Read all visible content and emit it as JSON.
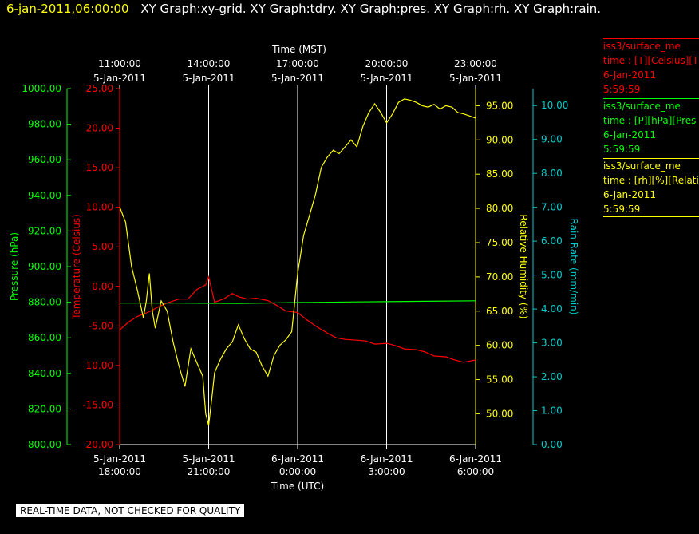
{
  "header": {
    "date": "6-jan-2011,06:00:00",
    "graphs": "XY Graph:xy-grid.  XY Graph:tdry.  XY Graph:pres.  XY Graph:rh.  XY Graph:rain."
  },
  "legend": [
    {
      "line1": "iss3/surface_me",
      "line2": "time : [T][Celsius][T",
      "line3": "6-Jan-2011",
      "line4": "5:59:59",
      "color": "#ff0000"
    },
    {
      "line1": "iss3/surface_me",
      "line2": "time : [P][hPa][Pres",
      "line3": "6-Jan-2011",
      "line4": "5:59:59",
      "color": "#00ff00"
    },
    {
      "line1": "iss3/surface_me",
      "line2": "time : [rh][%][Relati",
      "line3": "6-Jan-2011",
      "line4": "5:59:59",
      "color": "#ffff00"
    }
  ],
  "footer": "REAL-TIME DATA, NOT CHECKED FOR QUALITY",
  "chart_data": {
    "type": "line",
    "top_axis": {
      "label": "Time (MST)",
      "ticks": [
        {
          "time": "11:00:00",
          "date": "5-Jan-2011"
        },
        {
          "time": "14:00:00",
          "date": "5-Jan-2011"
        },
        {
          "time": "17:00:00",
          "date": "5-Jan-2011"
        },
        {
          "time": "20:00:00",
          "date": "5-Jan-2011"
        },
        {
          "time": "23:00:00",
          "date": "5-Jan-2011"
        }
      ]
    },
    "bottom_axis": {
      "label": "Time (UTC)",
      "ticks": [
        {
          "date": "5-Jan-2011",
          "time": "18:00:00"
        },
        {
          "date": "5-Jan-2011",
          "time": "21:00:00"
        },
        {
          "date": "6-Jan-2011",
          "time": "0:00:00"
        },
        {
          "date": "6-Jan-2011",
          "time": "3:00:00"
        },
        {
          "date": "6-Jan-2011",
          "time": "6:00:00"
        }
      ],
      "xlim_hours_utc": [
        18,
        30
      ]
    },
    "y_axes": {
      "pressure": {
        "label": "Pressure (hPa)",
        "ylim": [
          800,
          1000
        ],
        "ticks": [
          "800.00",
          "820.00",
          "840.00",
          "860.00",
          "880.00",
          "900.00",
          "920.00",
          "940.00",
          "960.00",
          "980.00",
          "1000.00"
        ],
        "color": "#00ff00"
      },
      "temperature": {
        "label": "Temperature (Celsius)",
        "ylim": [
          -20,
          25
        ],
        "ticks": [
          "-20.00",
          "-15.00",
          "-10.00",
          "-5.00",
          "0.00",
          "5.00",
          "10.00",
          "15.00",
          "20.00",
          "25.00"
        ],
        "color": "#ff0000"
      },
      "rh": {
        "label": "Relative Humidity (%)",
        "ylim": [
          45.5,
          97.5
        ],
        "ticks": [
          "50.00",
          "55.00",
          "60.00",
          "65.00",
          "70.00",
          "75.00",
          "80.00",
          "85.00",
          "90.00",
          "95.00"
        ],
        "color": "#ffff00"
      },
      "rain": {
        "label": "Rain Rate (mm/min)",
        "ylim": [
          0,
          10.5
        ],
        "ticks": [
          "0.00",
          "1.00",
          "2.00",
          "3.00",
          "4.00",
          "5.00",
          "6.00",
          "7.00",
          "8.00",
          "9.00",
          "10.00"
        ],
        "color": "#00cccc"
      }
    },
    "series": [
      {
        "axis": "temperature",
        "color": "#ff0000",
        "x": [
          18.0,
          18.3,
          18.6,
          19.0,
          19.3,
          19.6,
          20.0,
          20.3,
          20.6,
          20.9,
          21.0,
          21.2,
          21.5,
          21.8,
          22.0,
          22.3,
          22.6,
          23.0,
          23.3,
          23.6,
          24.0,
          24.3,
          24.6,
          25.0,
          25.3,
          25.6,
          26.0,
          26.3,
          26.6,
          27.0,
          27.3,
          27.6,
          28.0,
          28.3,
          28.6,
          29.0,
          29.3,
          29.6,
          30.0
        ],
        "y": [
          -5.5,
          -4.5,
          -3.8,
          -3.2,
          -2.6,
          -2.1,
          -1.6,
          -1.6,
          -0.4,
          0.2,
          1.2,
          -2.0,
          -1.6,
          -0.9,
          -1.3,
          -1.6,
          -1.5,
          -1.8,
          -2.4,
          -3.1,
          -3.3,
          -4.2,
          -5.0,
          -5.9,
          -6.5,
          -6.7,
          -6.8,
          -6.9,
          -7.3,
          -7.2,
          -7.5,
          -7.9,
          -8.0,
          -8.3,
          -8.8,
          -8.9,
          -9.3,
          -9.6,
          -9.3
        ]
      },
      {
        "axis": "pressure",
        "color": "#00ff00",
        "x": [
          18.0,
          20.0,
          22.0,
          24.0,
          26.0,
          28.0,
          30.0
        ],
        "y": [
          879.5,
          879.5,
          879.3,
          879.8,
          880.2,
          880.5,
          880.8
        ]
      },
      {
        "axis": "rh",
        "color": "#ffff00",
        "x": [
          18.0,
          18.2,
          18.4,
          18.6,
          18.8,
          18.9,
          19.0,
          19.1,
          19.2,
          19.4,
          19.6,
          19.8,
          20.0,
          20.2,
          20.4,
          20.6,
          20.8,
          20.9,
          21.0,
          21.1,
          21.2,
          21.4,
          21.6,
          21.8,
          22.0,
          22.2,
          22.4,
          22.6,
          22.8,
          23.0,
          23.2,
          23.4,
          23.6,
          23.8,
          24.0,
          24.2,
          24.4,
          24.6,
          24.8,
          25.0,
          25.2,
          25.4,
          25.6,
          25.8,
          26.0,
          26.2,
          26.4,
          26.6,
          26.8,
          27.0,
          27.2,
          27.4,
          27.6,
          27.8,
          28.0,
          28.2,
          28.4,
          28.6,
          28.8,
          29.0,
          29.2,
          29.4,
          29.6,
          29.8,
          30.0
        ],
        "y": [
          80.2,
          78.0,
          71.5,
          68.0,
          64.0,
          66.5,
          70.5,
          65.0,
          62.5,
          66.5,
          65.0,
          60.5,
          57.0,
          54.0,
          59.5,
          57.5,
          55.5,
          50.0,
          48.3,
          52.0,
          56.0,
          58.0,
          59.5,
          60.5,
          63.0,
          61.0,
          59.5,
          59.0,
          57.0,
          55.5,
          58.5,
          60.0,
          60.8,
          62.0,
          70.5,
          76.0,
          79.0,
          82.0,
          86.0,
          87.5,
          88.5,
          88.0,
          89.0,
          90.0,
          89.0,
          92.0,
          94.0,
          95.3,
          94.0,
          92.5,
          93.8,
          95.5,
          96.0,
          95.8,
          95.5,
          95.0,
          94.8,
          95.2,
          94.5,
          95.0,
          94.8,
          94.0,
          93.8,
          93.5,
          93.2
        ]
      }
    ]
  }
}
